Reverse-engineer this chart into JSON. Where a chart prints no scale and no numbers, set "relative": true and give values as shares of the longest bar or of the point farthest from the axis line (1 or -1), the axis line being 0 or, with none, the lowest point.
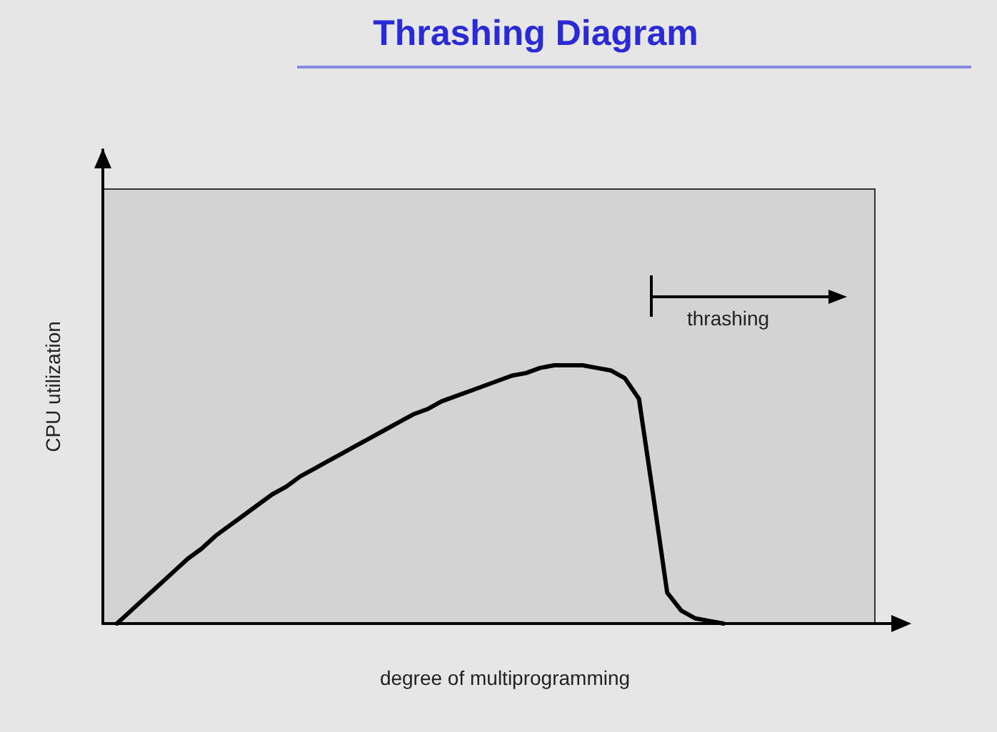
{
  "chart_data": {
    "type": "line",
    "title": "Thrashing Diagram",
    "xlabel": "degree of multiprogramming",
    "ylabel": "CPU utilization",
    "annotations": [
      "thrashing"
    ],
    "relative": true,
    "marker": "none",
    "line_style": "solid",
    "grid": false,
    "categories": [
      null,
      null,
      null,
      null,
      null,
      null,
      null,
      null,
      null,
      null,
      null,
      null,
      null,
      null,
      null,
      null,
      null,
      null,
      null,
      null,
      null,
      null,
      null,
      null,
      null,
      null,
      null,
      null,
      null,
      null,
      null,
      null,
      null,
      null,
      null,
      null,
      null,
      null,
      null,
      null,
      null,
      null,
      null,
      null,
      null,
      null,
      null,
      null,
      null,
      null,
      null,
      null,
      null,
      null,
      null,
      null,
      null,
      null
    ],
    "series": [
      {
        "color": "#000000",
        "values": [
          null,
          0,
          0.05,
          0.1,
          0.15,
          0.2,
          0.25,
          0.29,
          0.34,
          0.38,
          0.42,
          0.46,
          0.5,
          0.53,
          0.57,
          0.6,
          0.63,
          0.66,
          0.69,
          0.72,
          0.75,
          0.78,
          0.81,
          0.83,
          0.86,
          0.88,
          0.9,
          0.92,
          0.94,
          0.96,
          0.97,
          0.99,
          1,
          1,
          1,
          0.99,
          0.98,
          0.95,
          0.87,
          0.5,
          0.12,
          0.05,
          0.02,
          0.01,
          0,
          null,
          null,
          null,
          null,
          null,
          null,
          null,
          null,
          null,
          null,
          null,
          null,
          null
        ]
      }
    ]
  }
}
